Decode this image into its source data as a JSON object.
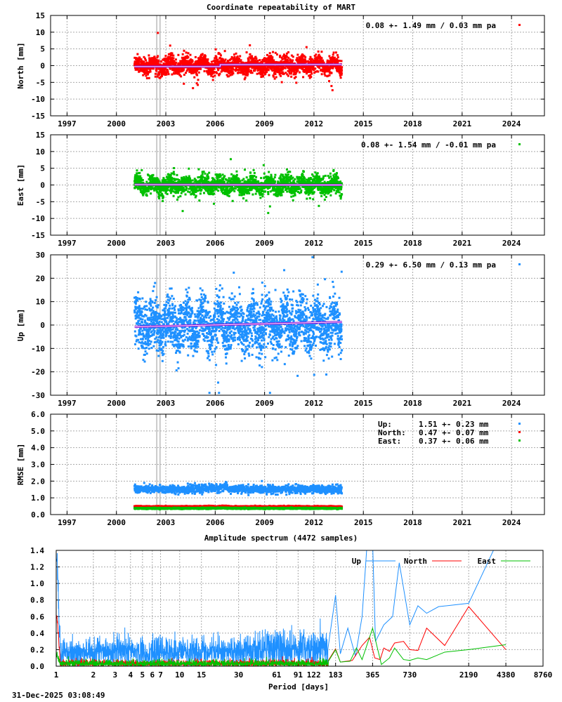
{
  "title": "Coordinate repeatability of MART",
  "timestamp": "31-Dec-2025 03:08:49",
  "chart_data": [
    {
      "type": "scatter",
      "ylabel": "North [mm]",
      "color": "#ff0000",
      "xlim": [
        1996,
        2026
      ],
      "ylim": [
        -15,
        15
      ],
      "yticks": [
        -15,
        -10,
        -5,
        0,
        5,
        10,
        15
      ],
      "xticks": [
        1997,
        2000,
        2003,
        2006,
        2009,
        2012,
        2015,
        2018,
        2021,
        2024
      ],
      "grid": true,
      "legend": "0.08 +- 1.49 mm /  0.03 mm pa",
      "legend_position": "top-right",
      "data_span": [
        2001.1,
        2013.7
      ],
      "std_mm": 1.49,
      "trend": [
        [
          2001.1,
          -0.3
        ],
        [
          2006.3,
          -0.3
        ],
        [
          2006.3,
          0.3
        ],
        [
          2013.7,
          0.35
        ]
      ],
      "trend_color": "#9400d3"
    },
    {
      "type": "scatter",
      "ylabel": "East [mm]",
      "color": "#00c000",
      "xlim": [
        1996,
        2026
      ],
      "ylim": [
        -15,
        15
      ],
      "yticks": [
        -15,
        -10,
        -5,
        0,
        5,
        10,
        15
      ],
      "xticks": [
        1997,
        2000,
        2003,
        2006,
        2009,
        2012,
        2015,
        2018,
        2021,
        2024
      ],
      "grid": true,
      "legend": "0.08 +- 1.54 mm / -0.01 mm pa",
      "legend_position": "top-right",
      "data_span": [
        2001.1,
        2013.7
      ],
      "std_mm": 1.54,
      "trend": [
        [
          2001.1,
          0.1
        ],
        [
          2013.7,
          0.0
        ]
      ],
      "trend_color": "#9400d3"
    },
    {
      "type": "scatter",
      "ylabel": "Up [mm]",
      "color": "#1e90ff",
      "xlim": [
        1996,
        2026
      ],
      "ylim": [
        -30,
        30
      ],
      "yticks": [
        -30,
        -20,
        -10,
        0,
        10,
        20,
        30
      ],
      "xticks": [
        1997,
        2000,
        2003,
        2006,
        2009,
        2012,
        2015,
        2018,
        2021,
        2024
      ],
      "grid": true,
      "legend": "0.29 +- 6.50 mm /  0.13 mm pa",
      "legend_position": "top-right",
      "data_span": [
        2001.1,
        2013.7
      ],
      "std_mm": 6.5,
      "trend": [
        [
          2001.1,
          -0.8
        ],
        [
          2013.7,
          1.3
        ]
      ],
      "trend_color": "#9400d3"
    },
    {
      "type": "scatter",
      "ylabel": "RMSE [mm]",
      "xlim": [
        1996,
        2026
      ],
      "ylim": [
        0,
        6
      ],
      "yticks": [
        "0.0",
        "1.0",
        "2.0",
        "3.0",
        "4.0",
        "5.0",
        "6.0"
      ],
      "xticks": [
        1997,
        2000,
        2003,
        2006,
        2009,
        2012,
        2015,
        2018,
        2021,
        2024
      ],
      "grid": true,
      "legend_position": "top-right",
      "data_span": [
        2001.1,
        2013.7
      ],
      "series": [
        {
          "name": "Up:",
          "mean": 1.51,
          "std": 0.23,
          "text": "1.51 +- 0.23 mm",
          "color": "#1e90ff"
        },
        {
          "name": "North:",
          "mean": 0.47,
          "std": 0.07,
          "text": "0.47 +- 0.07 mm",
          "color": "#ff0000"
        },
        {
          "name": "East:",
          "mean": 0.37,
          "std": 0.06,
          "text": "0.37 +- 0.06 mm",
          "color": "#00c000"
        }
      ]
    },
    {
      "type": "line",
      "title": "Amplitude spectrum (4472 samples)",
      "xlabel": "Period [days]",
      "xscale": "log",
      "xlim": [
        1,
        8760
      ],
      "ylim": [
        0,
        1.4
      ],
      "xticks": [
        1,
        2,
        3,
        4,
        5,
        6,
        7,
        10,
        15,
        30,
        61,
        91,
        122,
        183,
        365,
        730,
        2190,
        4380,
        8760
      ],
      "yticks": [
        "0.0",
        "0.2",
        "0.4",
        "0.6",
        "0.8",
        "1.0",
        "1.2",
        "1.4"
      ],
      "grid": true,
      "legend_position": "top-right",
      "series": [
        {
          "name": "Up",
          "color": "#1e90ff",
          "noise_level": 0.2,
          "points": [
            [
              160,
              0.25
            ],
            [
              183,
              0.86
            ],
            [
              200,
              0.15
            ],
            [
              230,
              0.46
            ],
            [
              265,
              0.12
            ],
            [
              300,
              0.6
            ],
            [
              330,
              1.5
            ],
            [
              365,
              1.5
            ],
            [
              385,
              0.3
            ],
            [
              450,
              0.5
            ],
            [
              530,
              0.6
            ],
            [
              600,
              1.25
            ],
            [
              730,
              0.5
            ],
            [
              850,
              0.73
            ],
            [
              1000,
              0.64
            ],
            [
              1250,
              0.72
            ],
            [
              2190,
              0.76
            ],
            [
              3600,
              1.45
            ]
          ]
        },
        {
          "name": "North",
          "color": "#ff0000",
          "noise_level": 0.05,
          "points": [
            [
              160,
              0.07
            ],
            [
              183,
              0.21
            ],
            [
              200,
              0.05
            ],
            [
              250,
              0.07
            ],
            [
              300,
              0.25
            ],
            [
              345,
              0.35
            ],
            [
              380,
              0.1
            ],
            [
              420,
              0.08
            ],
            [
              450,
              0.22
            ],
            [
              500,
              0.18
            ],
            [
              550,
              0.28
            ],
            [
              650,
              0.3
            ],
            [
              730,
              0.2
            ],
            [
              850,
              0.19
            ],
            [
              1000,
              0.46
            ],
            [
              1400,
              0.25
            ],
            [
              2190,
              0.72
            ],
            [
              4380,
              0.2
            ]
          ]
        },
        {
          "name": "East",
          "color": "#00c000",
          "noise_level": 0.05,
          "points": [
            [
              160,
              0.06
            ],
            [
              183,
              0.2
            ],
            [
              200,
              0.05
            ],
            [
              240,
              0.06
            ],
            [
              270,
              0.22
            ],
            [
              300,
              0.08
            ],
            [
              365,
              0.46
            ],
            [
              430,
              0.02
            ],
            [
              500,
              0.1
            ],
            [
              550,
              0.22
            ],
            [
              650,
              0.08
            ],
            [
              730,
              0.07
            ],
            [
              850,
              0.1
            ],
            [
              1000,
              0.08
            ],
            [
              1400,
              0.17
            ],
            [
              2190,
              0.2
            ],
            [
              4380,
              0.26
            ]
          ]
        }
      ]
    }
  ]
}
